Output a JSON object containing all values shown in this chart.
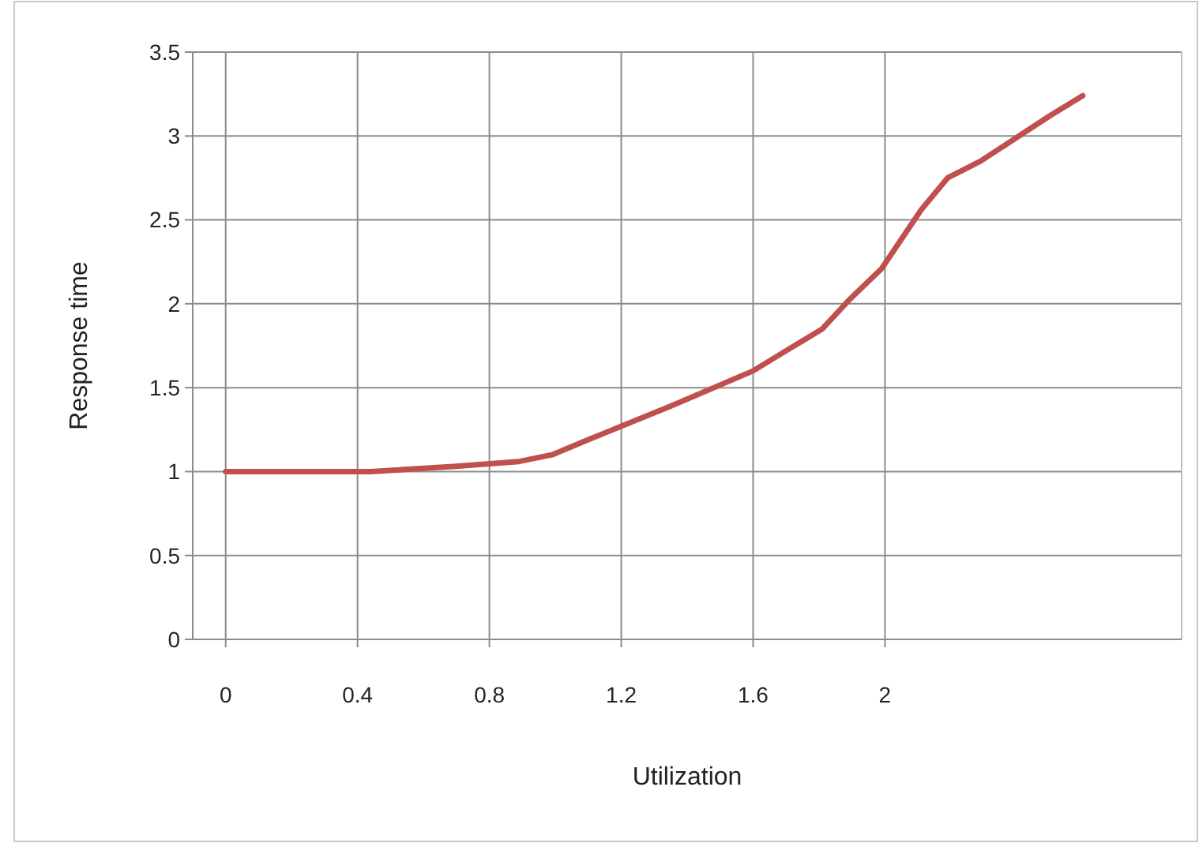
{
  "chart_data": {
    "type": "line",
    "xlabel": "Utilization",
    "ylabel": "Response time",
    "x": [
      0,
      0.44,
      0.69,
      0.89,
      0.99,
      1.1,
      1.35,
      1.6,
      1.7,
      1.81,
      1.89,
      1.99,
      2.11,
      2.19,
      2.29,
      2.5,
      2.6
    ],
    "series": [
      {
        "color": "#c0504d",
        "values": [
          1.0,
          1.0,
          1.03,
          1.06,
          1.1,
          1.19,
          1.39,
          1.6,
          1.72,
          1.85,
          2.02,
          2.21,
          2.56,
          2.75,
          2.85,
          3.12,
          3.24
        ]
      }
    ],
    "xlim": [
      -0.1,
      2.9
    ],
    "xticks": [
      0,
      0.4,
      0.8,
      1.2,
      1.6,
      2
    ],
    "ylim": [
      0,
      3.5
    ],
    "yticks": [
      0,
      0.5,
      1,
      1.5,
      2,
      2.5,
      3,
      3.5
    ],
    "grid": true,
    "marker": "none",
    "line_style": "solid"
  }
}
